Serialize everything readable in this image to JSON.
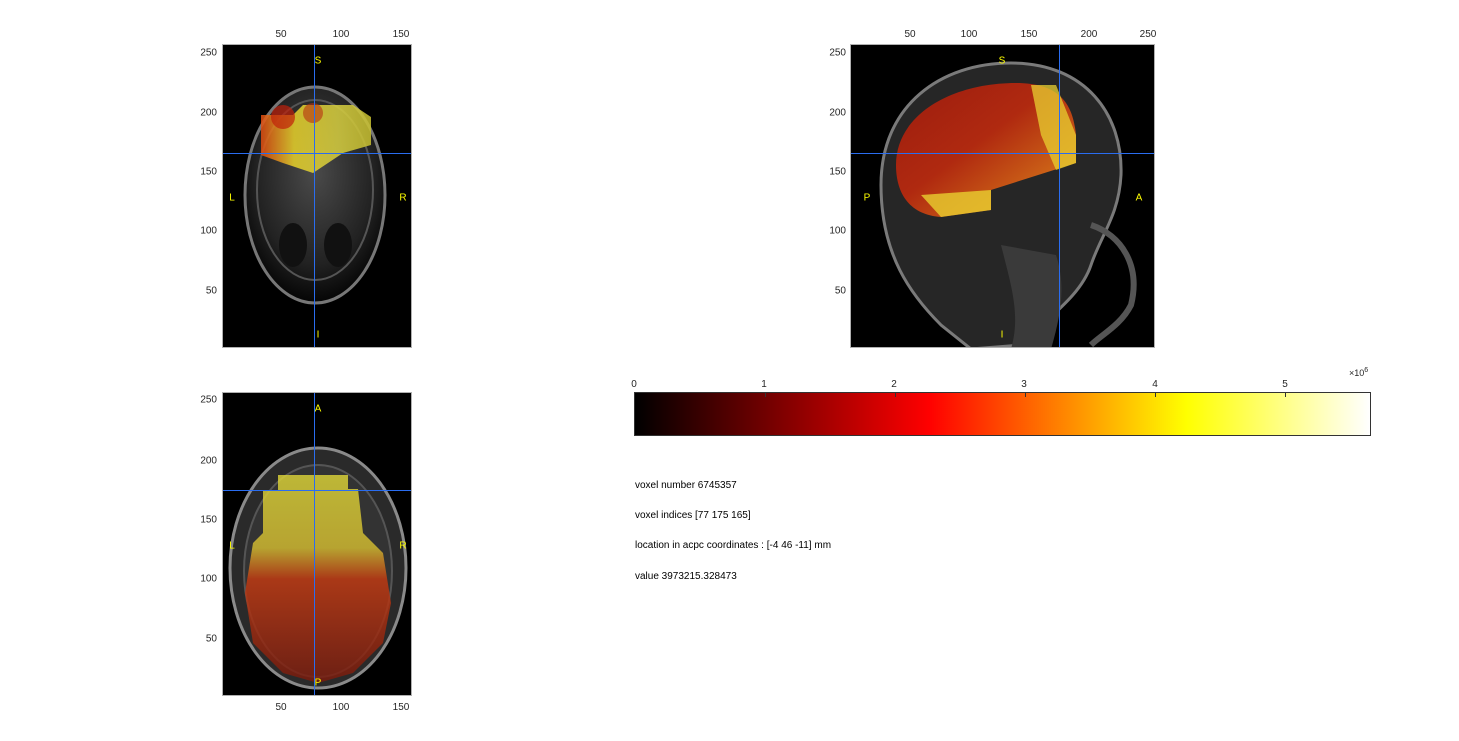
{
  "views": {
    "coronal": {
      "x_ticks": [
        "50",
        "100",
        "150"
      ],
      "y_ticks": [
        "250",
        "200",
        "150",
        "100",
        "50"
      ],
      "orient": {
        "top": "S",
        "bottom": "I",
        "left": "L",
        "right": "R"
      }
    },
    "sagittal": {
      "x_ticks": [
        "50",
        "100",
        "150",
        "200",
        "250"
      ],
      "y_ticks": [
        "250",
        "200",
        "150",
        "100",
        "50"
      ],
      "orient": {
        "top": "S",
        "bottom": "I",
        "left": "P",
        "right": "A"
      }
    },
    "axial": {
      "x_ticks": [
        "50",
        "100",
        "150"
      ],
      "y_ticks": [
        "250",
        "200",
        "150",
        "100",
        "50"
      ],
      "orient": {
        "top": "A",
        "bottom": "P",
        "left": "L",
        "right": "R"
      }
    }
  },
  "colorbar": {
    "ticks": [
      "0",
      "1",
      "2",
      "3",
      "4",
      "5"
    ],
    "multiplier_base": "×10",
    "multiplier_exp": "6",
    "colors": {
      "low": "#000000",
      "mid": "#ff0000",
      "high": "#ffff00",
      "max": "#ffffff"
    }
  },
  "info": {
    "voxel_number": "voxel number 6745357",
    "voxel_indices": "voxel indices [77 175 165]",
    "location": "location in acpc coordinates : [-4 46 -11] mm",
    "value": "value 3973215.328473"
  }
}
